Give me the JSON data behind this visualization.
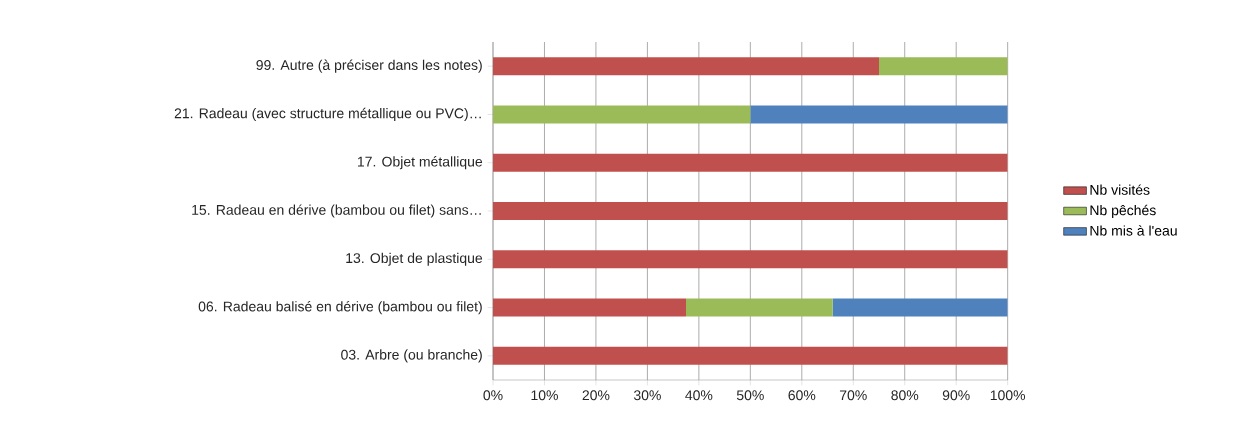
{
  "chart_data": {
    "type": "bar",
    "orientation": "horizontal",
    "stacked": true,
    "categories": [
      "99. Autre (à préciser dans les notes)",
      "21. Radeau (avec structure métallique ou PVC)…",
      "17. Objet métallique",
      "15. Radeau en dérive (bambou ou filet) sans…",
      "13. Objet de plastique",
      "06. Radeau balisé en dérive (bambou ou filet)",
      "03. Arbre (ou branche)"
    ],
    "series": [
      {
        "name": "Nb visités",
        "color": "#c0504d",
        "values": [
          75,
          0,
          100,
          100,
          100,
          37.5,
          100
        ]
      },
      {
        "name": "Nb pêchés",
        "color": "#9bbb59",
        "values": [
          25,
          50,
          0,
          0,
          0,
          28.5,
          0
        ]
      },
      {
        "name": "Nb mis à l'eau",
        "color": "#4f81bd",
        "values": [
          0,
          50,
          0,
          0,
          0,
          34,
          0
        ]
      }
    ],
    "xlim": [
      0,
      100
    ],
    "xticks": [
      {
        "value": 0,
        "label": "0%"
      },
      {
        "value": 10,
        "label": "10%"
      },
      {
        "value": 20,
        "label": "20%"
      },
      {
        "value": 30,
        "label": "30%"
      },
      {
        "value": 40,
        "label": "40%"
      },
      {
        "value": 50,
        "label": "50%"
      },
      {
        "value": 60,
        "label": "60%"
      },
      {
        "value": 70,
        "label": "70%"
      },
      {
        "value": 80,
        "label": "80%"
      },
      {
        "value": 90,
        "label": "90%"
      },
      {
        "value": 100,
        "label": "100%"
      }
    ],
    "grid": "x",
    "legend": "right"
  }
}
